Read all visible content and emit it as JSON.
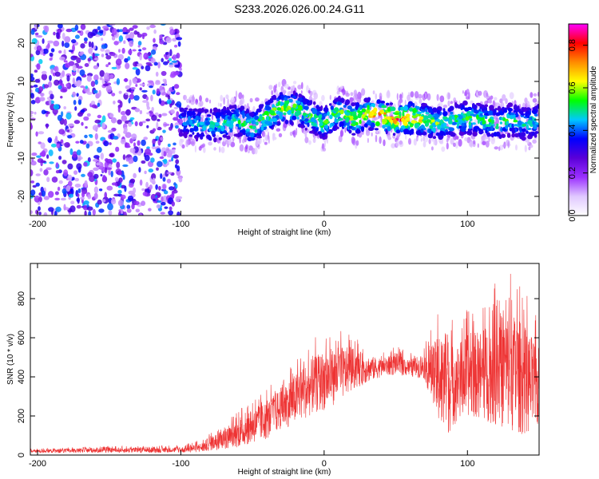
{
  "title": "S233.2026.026.00.24.G11",
  "chart_data": [
    {
      "type": "heatmap",
      "name": "spectrogram",
      "xlabel": "Height of straight line (km)",
      "ylabel": "Frequency (Hz)",
      "xlim": [
        -205,
        150
      ],
      "ylim": [
        -25,
        25
      ],
      "x_ticks": [
        -200,
        -100,
        0,
        100
      ],
      "y_ticks": [
        -20,
        -10,
        0,
        10,
        20
      ],
      "colorbar": {
        "label": "Normalized spectral amplitude",
        "range": [
          0.0,
          0.9
        ],
        "ticks": [
          0.0,
          0.2,
          0.4,
          0.6,
          0.8
        ],
        "tick_labels": [
          "0.0",
          "0.2",
          "0.4",
          "0.6",
          "0.8"
        ],
        "colors": [
          "#ffffff",
          "#e0c8ff",
          "#9b30ff",
          "#5a00d8",
          "#0000ff",
          "#00c8ff",
          "#00ff00",
          "#ffff00",
          "#ff8c00",
          "#ff0000",
          "#ff00ff"
        ]
      },
      "signal_track": {
        "x": [
          -100,
          -90,
          -80,
          -70,
          -60,
          -50,
          -40,
          -30,
          -20,
          -10,
          0,
          10,
          20,
          30,
          40,
          50,
          60,
          70,
          80,
          90,
          100,
          110,
          120,
          130,
          140,
          150
        ],
        "freq": [
          0,
          -1,
          -1.5,
          -1,
          0,
          -2,
          1,
          3,
          3,
          1,
          -1,
          2,
          0,
          1.5,
          1,
          0,
          0.5,
          0,
          -1,
          0,
          0.5,
          0,
          -1,
          0,
          -1,
          0
        ],
        "peak_amp": [
          0.3,
          0.35,
          0.4,
          0.4,
          0.45,
          0.5,
          0.55,
          0.6,
          0.55,
          0.5,
          0.5,
          0.55,
          0.6,
          0.7,
          0.85,
          0.85,
          0.8,
          0.6,
          0.5,
          0.45,
          0.5,
          0.45,
          0.45,
          0.45,
          0.4,
          0.4
        ]
      },
      "noise_region": {
        "x_start": -205,
        "x_end": -100,
        "amp": 0.35
      }
    },
    {
      "type": "line",
      "name": "snr",
      "xlabel": "Height of straight line (km)",
      "ylabel": "SNR (10 * v/v)",
      "xlim": [
        -205,
        150
      ],
      "ylim": [
        0,
        980
      ],
      "x_ticks": [
        -200,
        -100,
        0,
        100
      ],
      "y_ticks": [
        0,
        200,
        400,
        600,
        800
      ],
      "color": "#ee3333",
      "envelope": {
        "x": [
          -205,
          -150,
          -100,
          -85,
          -80,
          -70,
          -60,
          -50,
          -40,
          -30,
          -20,
          -10,
          0,
          10,
          20,
          30,
          40,
          50,
          60,
          70,
          80,
          85,
          90,
          100,
          110,
          120,
          130,
          140,
          150
        ],
        "low": [
          10,
          12,
          12,
          15,
          20,
          30,
          40,
          60,
          80,
          130,
          160,
          200,
          230,
          270,
          330,
          370,
          400,
          410,
          400,
          390,
          150,
          80,
          150,
          200,
          180,
          150,
          120,
          100,
          120
        ],
        "high": [
          35,
          45,
          50,
          80,
          120,
          160,
          230,
          280,
          340,
          420,
          500,
          580,
          640,
          650,
          620,
          560,
          520,
          560,
          520,
          560,
          760,
          820,
          700,
          750,
          800,
          900,
          950,
          850,
          700
        ]
      }
    }
  ]
}
